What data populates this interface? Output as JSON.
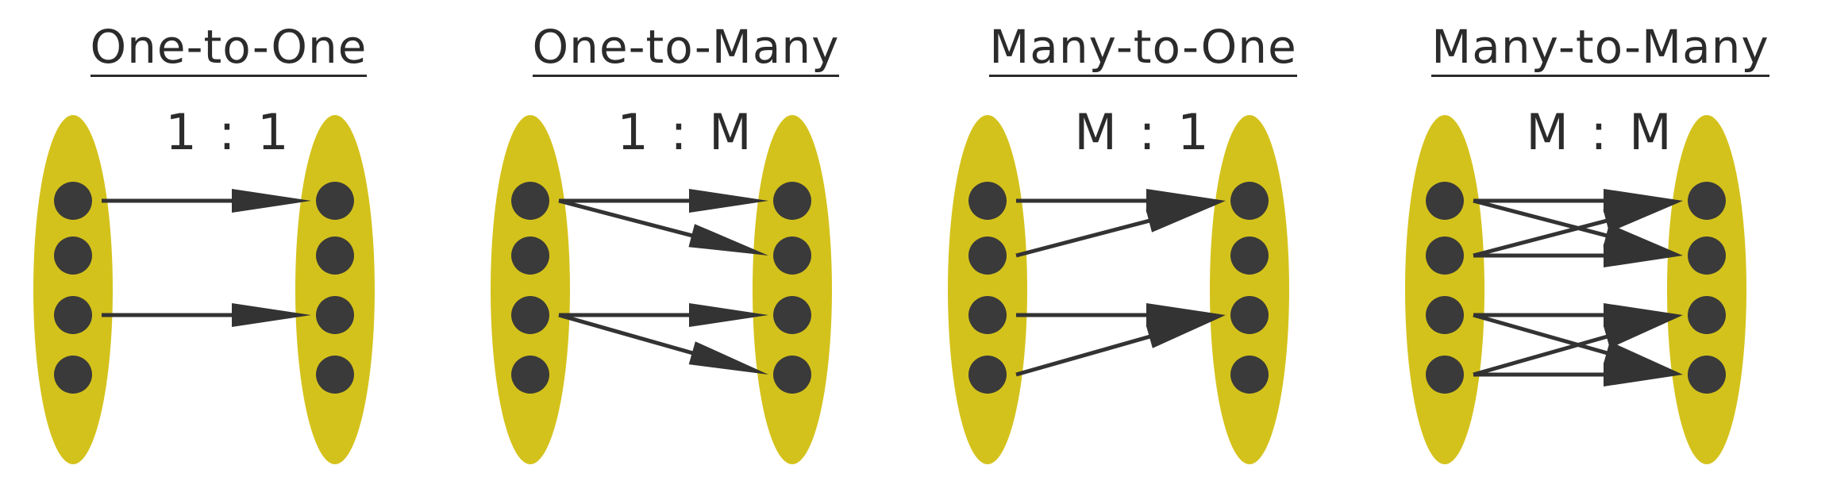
{
  "colors": {
    "set": "#d4c21c",
    "dot": "#3a3a3a",
    "arrow": "#333333",
    "text": "#2b2b2b"
  },
  "panels": [
    {
      "title": "One-to-One",
      "ratio": "1 : 1",
      "mapping": [
        [
          0,
          0
        ],
        [
          2,
          2
        ]
      ]
    },
    {
      "title": "One-to-Many",
      "ratio": "1 : M",
      "mapping": [
        [
          0,
          0
        ],
        [
          0,
          1
        ],
        [
          2,
          2
        ],
        [
          2,
          3
        ]
      ]
    },
    {
      "title": "Many-to-One",
      "ratio": "M : 1",
      "mapping": [
        [
          0,
          0
        ],
        [
          1,
          0
        ],
        [
          2,
          2
        ],
        [
          3,
          2
        ]
      ]
    },
    {
      "title": "Many-to-Many",
      "ratio": "M : M",
      "mapping": [
        [
          0,
          0
        ],
        [
          0,
          1
        ],
        [
          1,
          0
        ],
        [
          1,
          1
        ],
        [
          2,
          2
        ],
        [
          2,
          3
        ],
        [
          3,
          2
        ],
        [
          3,
          3
        ]
      ]
    }
  ]
}
